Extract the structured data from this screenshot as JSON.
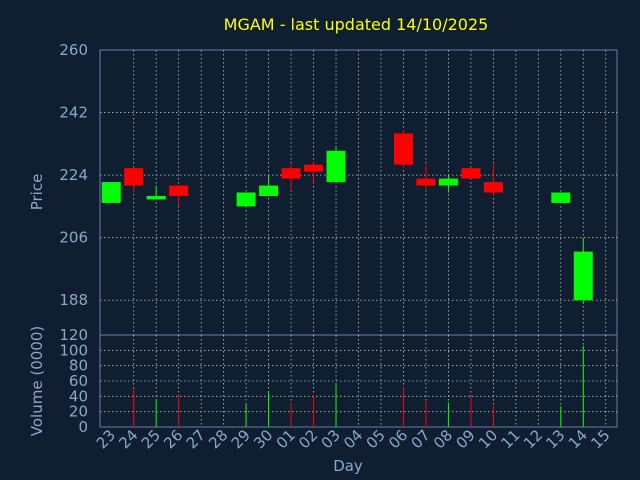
{
  "chart_data": {
    "type": "candlestick",
    "title": "MGAM - last updated 14/10/2025",
    "xlabel": "Day",
    "price_panel": {
      "ylabel": "Price",
      "ylim": [
        178,
        260
      ],
      "yticks": [
        188,
        206,
        224,
        242,
        260
      ],
      "grid": true
    },
    "volume_panel": {
      "ylabel": "Volume (0000)",
      "ylim": [
        0,
        120
      ],
      "yticks": [
        0,
        20,
        40,
        60,
        80,
        100,
        120
      ],
      "grid": true
    },
    "x_tick_labels": [
      "23",
      "24",
      "25",
      "26",
      "27",
      "28",
      "29",
      "30",
      "01",
      "02",
      "03",
      "04",
      "05",
      "06",
      "07",
      "08",
      "09",
      "10",
      "11",
      "12",
      "13",
      "14",
      "15"
    ],
    "candles": [
      {
        "day": "23",
        "open": 216,
        "close": 222,
        "high": 222,
        "low": 216,
        "volume": 0
      },
      {
        "day": "24",
        "open": 226,
        "close": 221,
        "high": 226,
        "low": 219,
        "volume": 50
      },
      {
        "day": "25",
        "open": 217,
        "close": 218,
        "high": 221,
        "low": 217,
        "volume": 35
      },
      {
        "day": "26",
        "open": 221,
        "close": 218,
        "high": 221,
        "low": 215,
        "volume": 43
      },
      {
        "day": "29",
        "open": 215,
        "close": 219,
        "high": 219,
        "low": 215,
        "volume": 31
      },
      {
        "day": "30",
        "open": 218,
        "close": 221,
        "high": 224,
        "low": 218,
        "volume": 47
      },
      {
        "day": "01",
        "open": 226,
        "close": 223,
        "high": 227,
        "low": 220,
        "volume": 31
      },
      {
        "day": "02",
        "open": 227,
        "close": 225,
        "high": 228,
        "low": 222,
        "volume": 42
      },
      {
        "day": "03",
        "open": 222,
        "close": 231,
        "high": 232,
        "low": 222,
        "volume": 55
      },
      {
        "day": "06",
        "open": 236,
        "close": 227,
        "high": 237,
        "low": 226,
        "volume": 52
      },
      {
        "day": "07",
        "open": 223,
        "close": 221,
        "high": 227,
        "low": 220,
        "volume": 33
      },
      {
        "day": "08",
        "open": 221,
        "close": 223,
        "high": 224,
        "low": 219,
        "volume": 32
      },
      {
        "day": "09",
        "open": 226,
        "close": 223,
        "high": 226,
        "low": 223,
        "volume": 39
      },
      {
        "day": "10",
        "open": 222,
        "close": 219,
        "high": 227,
        "low": 218,
        "volume": 28
      },
      {
        "day": "13",
        "open": 216,
        "close": 219,
        "high": 219,
        "low": 216,
        "volume": 27
      },
      {
        "day": "14",
        "open": 188,
        "close": 202,
        "high": 206,
        "low": 187,
        "volume": 106
      }
    ],
    "colors": {
      "background": "#0f1e30",
      "text": "#8fa6c8",
      "title": "#ffff00",
      "up": "#00ff00",
      "down": "#ff0000",
      "grid": "#c0c0c0",
      "frame": "#6a7f9f"
    }
  }
}
